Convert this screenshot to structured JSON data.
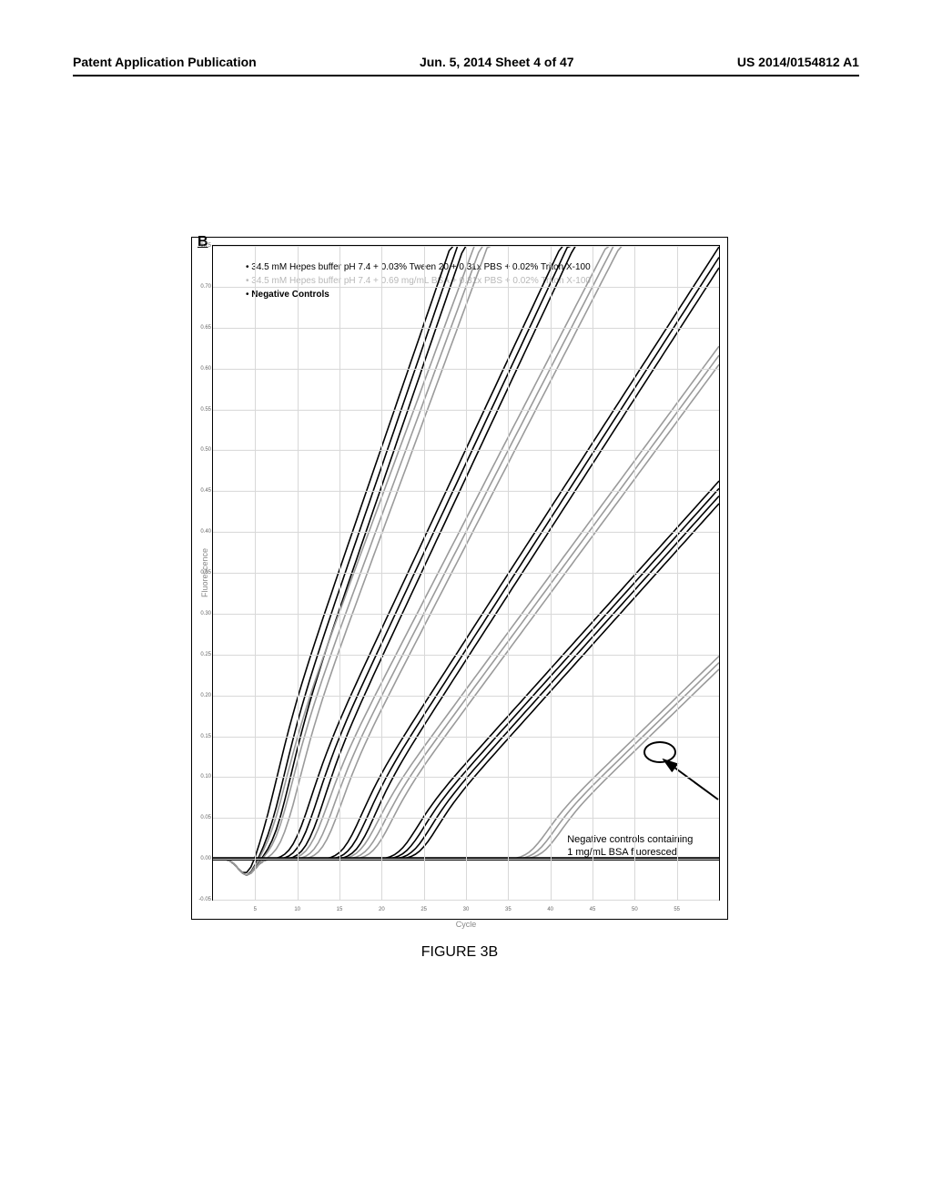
{
  "header": {
    "left": "Patent Application Publication",
    "center": "Jun. 5, 2014  Sheet 4 of 47",
    "right": "US 2014/0154812 A1"
  },
  "chart": {
    "type": "line",
    "panel_label": "B",
    "xlabel": "Cycle",
    "ylabel": "Fluorescence",
    "xlim": [
      0,
      60
    ],
    "ylim": [
      -0.05,
      0.75
    ],
    "xtick_step": 5,
    "ytick_step": 0.05,
    "xticks": [
      5,
      10,
      15,
      20,
      25,
      30,
      35,
      40,
      45,
      50,
      55
    ],
    "yticks": [
      -0.05,
      0.0,
      0.05,
      0.1,
      0.15,
      0.2,
      0.25,
      0.3,
      0.35,
      0.4,
      0.45,
      0.5,
      0.55,
      0.6,
      0.65,
      0.7,
      0.75
    ],
    "background_color": "#ffffff",
    "grid_color": "#d8d8d8",
    "border_color": "#000000",
    "tick_font_color": "#666666",
    "tick_fontsize": 6,
    "label_fontsize": 9,
    "legend": {
      "position": "top-left",
      "fontsize": 10,
      "items": [
        {
          "label": "34.5 mM Hepes buffer pH 7.4 + 0.03% Tween 20 + 0.31x PBS + 0.02% Triton X-100",
          "color": "#000000"
        },
        {
          "label": "34.5 mM Hepes buffer pH 7.4 + 0.69 mg/mL BSA + 0.31x PBS + 0.02% Triton X-100",
          "color": "#b8b8b8"
        },
        {
          "label": "Negative Controls",
          "color": "#000000",
          "bold": true
        }
      ]
    },
    "callout": {
      "text_line1": "Negative controls containing",
      "text_line2": "1 mg/mL BSA fluoresced"
    },
    "curve_groups": [
      {
        "color": "#000000",
        "width": 1.6,
        "threshold": 7,
        "slope": 0.03,
        "count": 3
      },
      {
        "color": "#9a9a9a",
        "width": 1.6,
        "threshold": 8,
        "slope": 0.028,
        "count": 3
      },
      {
        "color": "#000000",
        "width": 1.6,
        "threshold": 11,
        "slope": 0.022,
        "count": 3
      },
      {
        "color": "#9a9a9a",
        "width": 1.6,
        "threshold": 13,
        "slope": 0.02,
        "count": 3
      },
      {
        "color": "#000000",
        "width": 1.6,
        "threshold": 17,
        "slope": 0.016,
        "count": 3
      },
      {
        "color": "#9a9a9a",
        "width": 1.6,
        "threshold": 19,
        "slope": 0.014,
        "count": 3
      },
      {
        "color": "#000000",
        "width": 1.6,
        "threshold": 24,
        "slope": 0.0115,
        "count": 4
      },
      {
        "color": "#9a9a9a",
        "width": 1.6,
        "threshold": 39,
        "slope": 0.01,
        "count": 3
      },
      {
        "color": "#000000",
        "width": 2.0,
        "threshold": 60,
        "slope": 0.0,
        "count": 2,
        "flat": true
      }
    ],
    "figure_caption": "FIGURE 3B"
  }
}
